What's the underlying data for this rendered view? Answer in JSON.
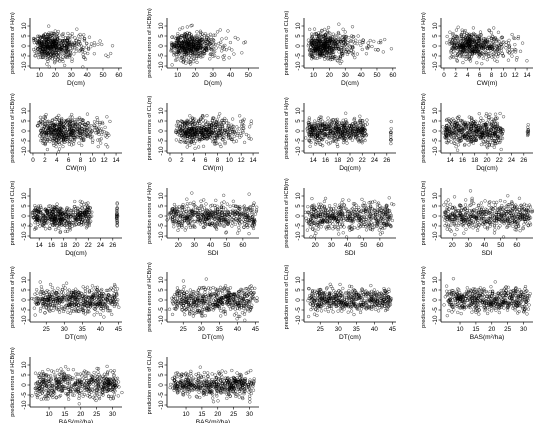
{
  "chart_data": [
    {
      "type": "scatter",
      "xlabel": "D(cm)",
      "ylabel": "prediction errors of H(m)",
      "xticks": [
        10,
        20,
        30,
        40,
        50,
        60
      ],
      "yticks": [
        -10,
        -5,
        0,
        5,
        10
      ],
      "xlim": [
        4,
        62
      ],
      "ylim": [
        -11,
        14
      ],
      "x": {
        "dist": "gamma",
        "min": 5,
        "max": 60,
        "mode": 15
      },
      "y": {
        "sd": 3.3
      }
    },
    {
      "type": "scatter",
      "xlabel": "D(cm)",
      "ylabel": "prediction errors of HCB(m)",
      "xticks": [
        10,
        20,
        30,
        40,
        50
      ],
      "yticks": [
        -10,
        -5,
        0,
        5,
        10
      ],
      "xlim": [
        4,
        56
      ],
      "ylim": [
        -11,
        14
      ],
      "x": {
        "dist": "gamma",
        "min": 5,
        "max": 52,
        "mode": 14
      },
      "y": {
        "sd": 3.5
      }
    },
    {
      "type": "scatter",
      "xlabel": "D(cm)",
      "ylabel": "prediction errors of CL(m)",
      "xticks": [
        10,
        20,
        30,
        40,
        50,
        60
      ],
      "yticks": [
        -10,
        -5,
        0,
        5,
        10
      ],
      "xlim": [
        4,
        62
      ],
      "ylim": [
        -11,
        14
      ],
      "x": {
        "dist": "gamma",
        "min": 5,
        "max": 60,
        "mode": 15
      },
      "y": {
        "sd": 3.3
      }
    },
    {
      "type": "scatter",
      "xlabel": "CW(m)",
      "ylabel": "prediction errors of H(m)",
      "xticks": [
        0,
        2,
        4,
        6,
        8,
        10,
        12,
        14
      ],
      "yticks": [
        -10,
        -5,
        0,
        5,
        10
      ],
      "xlim": [
        -0.5,
        15
      ],
      "ylim": [
        -11,
        14
      ],
      "x": {
        "dist": "gamma",
        "min": 0.3,
        "max": 14,
        "mode": 4
      },
      "y": {
        "sd": 3.3
      }
    },
    {
      "type": "scatter",
      "xlabel": "CW(m)",
      "ylabel": "prediction errors of HCB(m)",
      "xticks": [
        0,
        2,
        4,
        6,
        8,
        10,
        12,
        14
      ],
      "yticks": [
        -10,
        -5,
        0,
        5,
        10
      ],
      "xlim": [
        -0.5,
        15
      ],
      "ylim": [
        -11,
        14
      ],
      "x": {
        "dist": "gamma",
        "min": 0.3,
        "max": 13,
        "mode": 4
      },
      "y": {
        "sd": 3.5
      }
    },
    {
      "type": "scatter",
      "xlabel": "CW(m)",
      "ylabel": "prediction errors of CL(m)",
      "xticks": [
        0,
        2,
        4,
        6,
        8,
        10,
        12,
        14
      ],
      "yticks": [
        -10,
        -5,
        0,
        5,
        10
      ],
      "xlim": [
        -0.5,
        15
      ],
      "ylim": [
        -11,
        14
      ],
      "x": {
        "dist": "gamma",
        "min": 0.3,
        "max": 14,
        "mode": 4
      },
      "y": {
        "sd": 3.3
      }
    },
    {
      "type": "scatter",
      "xlabel": "Dq(cm)",
      "ylabel": "prediction errors of H(m)",
      "xticks": [
        14,
        16,
        18,
        20,
        22,
        24,
        26
      ],
      "yticks": [
        -10,
        -5,
        0,
        5,
        10
      ],
      "xlim": [
        12.5,
        27.5
      ],
      "ylim": [
        -11,
        14
      ],
      "x": {
        "dist": "clustered",
        "min": 13,
        "max": 22.5,
        "outlier": 26.7
      },
      "y": {
        "sd": 3.0
      }
    },
    {
      "type": "scatter",
      "xlabel": "Dq(cm)",
      "ylabel": "prediction errors of HCB(m)",
      "xticks": [
        14,
        16,
        18,
        20,
        22,
        24,
        26
      ],
      "yticks": [
        -10,
        -5,
        0,
        5,
        10
      ],
      "xlim": [
        12.5,
        27.5
      ],
      "ylim": [
        -11,
        14
      ],
      "x": {
        "dist": "clustered",
        "min": 13,
        "max": 22.5,
        "outlier": 26.7
      },
      "y": {
        "sd": 3.4
      }
    },
    {
      "type": "scatter",
      "xlabel": "Dq(cm)",
      "ylabel": "prediction errors of CL(m)",
      "xticks": [
        14,
        16,
        18,
        20,
        22,
        24,
        26
      ],
      "yticks": [
        -10,
        -5,
        0,
        5,
        10
      ],
      "xlim": [
        12.5,
        27.5
      ],
      "ylim": [
        -11,
        14
      ],
      "x": {
        "dist": "clustered",
        "min": 13,
        "max": 22.5,
        "outlier": 26.7
      },
      "y": {
        "sd": 3.0
      }
    },
    {
      "type": "scatter",
      "xlabel": "SDI",
      "ylabel": "prediction errors of H(m)",
      "xticks": [
        20,
        30,
        40,
        50,
        60
      ],
      "yticks": [
        -10,
        -5,
        0,
        5,
        10
      ],
      "xlim": [
        13,
        70
      ],
      "ylim": [
        -11,
        14
      ],
      "x": {
        "dist": "clustered",
        "min": 15,
        "max": 68
      },
      "y": {
        "sd": 3.2
      }
    },
    {
      "type": "scatter",
      "xlabel": "SDI",
      "ylabel": "prediction errors of HCB(m)",
      "xticks": [
        20,
        30,
        40,
        50,
        60
      ],
      "yticks": [
        -10,
        -5,
        0,
        5,
        10
      ],
      "xlim": [
        13,
        70
      ],
      "ylim": [
        -11,
        14
      ],
      "x": {
        "dist": "clustered",
        "min": 15,
        "max": 68
      },
      "y": {
        "sd": 3.4
      }
    },
    {
      "type": "scatter",
      "xlabel": "SDI",
      "ylabel": "prediction errors of CL(m)",
      "xticks": [
        20,
        30,
        40,
        50,
        60
      ],
      "yticks": [
        -10,
        -5,
        0,
        5,
        10
      ],
      "xlim": [
        13,
        70
      ],
      "ylim": [
        -11,
        14
      ],
      "x": {
        "dist": "clustered",
        "min": 15,
        "max": 68
      },
      "y": {
        "sd": 3.2
      }
    },
    {
      "type": "scatter",
      "xlabel": "DT(cm)",
      "ylabel": "prediction errors of H(m)",
      "xticks": [
        25,
        30,
        35,
        40,
        45
      ],
      "yticks": [
        -10,
        -5,
        0,
        5,
        10
      ],
      "xlim": [
        20.5,
        46
      ],
      "ylim": [
        -11,
        14
      ],
      "x": {
        "dist": "clustered",
        "min": 22,
        "max": 44.5
      },
      "y": {
        "sd": 3.0
      }
    },
    {
      "type": "scatter",
      "xlabel": "DT(cm)",
      "ylabel": "prediction errors of HCB(m)",
      "xticks": [
        25,
        30,
        35,
        40,
        45
      ],
      "yticks": [
        -10,
        -5,
        0,
        5,
        10
      ],
      "xlim": [
        20.5,
        46
      ],
      "ylim": [
        -11,
        14
      ],
      "x": {
        "dist": "clustered",
        "min": 22,
        "max": 44.5
      },
      "y": {
        "sd": 3.4
      }
    },
    {
      "type": "scatter",
      "xlabel": "DT(cm)",
      "ylabel": "prediction errors of CL(m)",
      "xticks": [
        25,
        30,
        35,
        40,
        45
      ],
      "yticks": [
        -10,
        -5,
        0,
        5,
        10
      ],
      "xlim": [
        20.5,
        46
      ],
      "ylim": [
        -11,
        14
      ],
      "x": {
        "dist": "clustered",
        "min": 22,
        "max": 44.5
      },
      "y": {
        "sd": 3.0
      }
    },
    {
      "type": "scatter",
      "xlabel": "BAS(m²/ha)",
      "ylabel": "prediction errors of H(m)",
      "xticks": [
        10,
        15,
        20,
        25,
        30
      ],
      "yticks": [
        -10,
        -5,
        0,
        5,
        10
      ],
      "xlim": [
        4,
        33
      ],
      "ylim": [
        -11,
        14
      ],
      "x": {
        "dist": "clustered",
        "min": 6,
        "max": 31.5
      },
      "y": {
        "sd": 3.0
      }
    },
    {
      "type": "scatter",
      "xlabel": "BAS(m²/ha)",
      "ylabel": "prediction errors of HCB(m)",
      "xticks": [
        10,
        15,
        20,
        25,
        30
      ],
      "yticks": [
        -10,
        -5,
        0,
        5,
        10
      ],
      "xlim": [
        4,
        33
      ],
      "ylim": [
        -11,
        14
      ],
      "x": {
        "dist": "clustered",
        "min": 6,
        "max": 31.5
      },
      "y": {
        "sd": 3.4
      }
    },
    {
      "type": "scatter",
      "xlabel": "BAS(m²/ha)",
      "ylabel": "prediction errors of CL(m)",
      "xticks": [
        10,
        15,
        20,
        25,
        30
      ],
      "yticks": [
        -10,
        -5,
        0,
        5,
        10
      ],
      "xlim": [
        4,
        33
      ],
      "ylim": [
        -11,
        14
      ],
      "x": {
        "dist": "clustered",
        "min": 6,
        "max": 31.5
      },
      "y": {
        "sd": 3.0
      }
    }
  ]
}
